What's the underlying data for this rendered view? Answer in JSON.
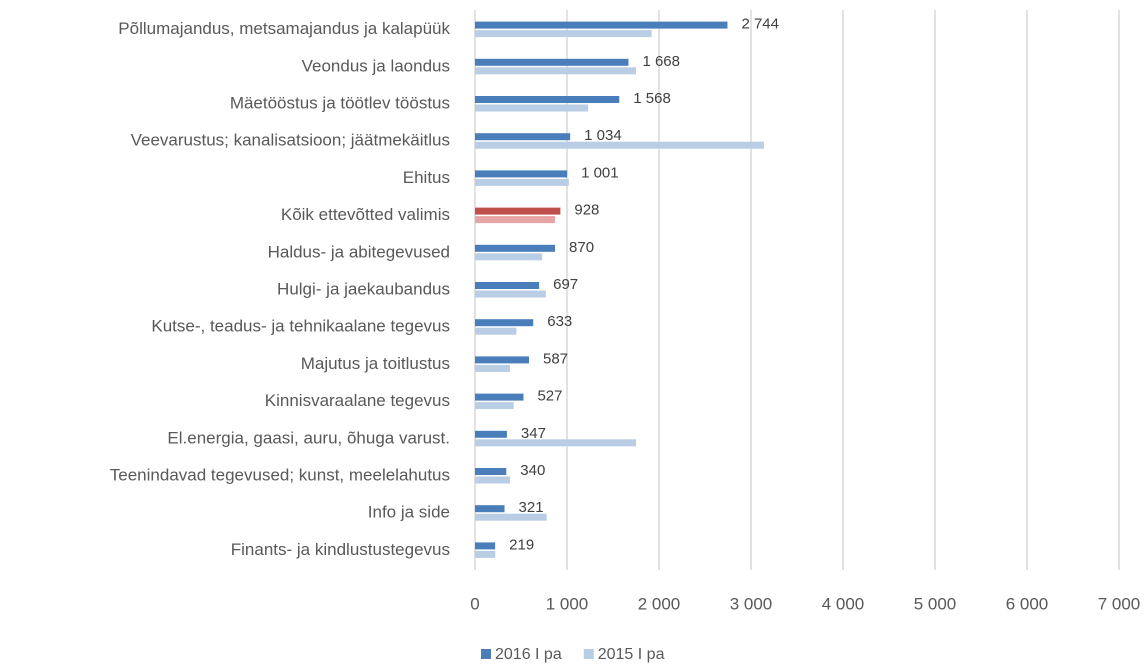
{
  "chart_data": {
    "type": "hbar",
    "categories": [
      "Põllumajandus, metsamajandus ja kalapüük",
      "Veondus ja laondus",
      "Mäetööstus ja töötlev tööstus",
      "Veevarustus; kanalisatsioon; jäätmekäitlus",
      "Ehitus",
      "Kõik ettevõtted valimis",
      "Haldus- ja abitegevused",
      "Hulgi- ja jaekaubandus",
      "Kutse-, teadus- ja tehnikaalane tegevus",
      "Majutus ja toitlustus",
      "Kinnisvaraalane tegevus",
      "El.energia, gaasi, auru, õhuga varust.",
      "Teenindavad tegevused; kunst, meelelahutus",
      "Info ja side",
      "Finants- ja kindlustustegevus"
    ],
    "series": [
      {
        "name": "2016 I pa",
        "color": "#4a7ebb",
        "point_colors": {
          "5": "#c0504d"
        },
        "values": [
          2744,
          1668,
          1568,
          1034,
          1001,
          928,
          870,
          697,
          633,
          587,
          527,
          347,
          340,
          321,
          219
        ],
        "value_labels": [
          "2 744",
          "1 668",
          "1 568",
          "1 034",
          "1 001",
          "928",
          "870",
          "697",
          "633",
          "587",
          "527",
          "347",
          "340",
          "321",
          "219"
        ]
      },
      {
        "name": "2015 I pa",
        "color": "#b9cde5",
        "point_colors": {
          "5": "#e6a5a4"
        },
        "values": [
          1920,
          1750,
          1230,
          3140,
          1020,
          870,
          730,
          770,
          450,
          380,
          420,
          1750,
          380,
          780,
          220
        ]
      }
    ],
    "xlim": [
      0,
      7000
    ],
    "xticks": [
      0,
      {
        "value": 1000,
        "label": "1 000"
      },
      {
        "value": 2000,
        "label": "2 000"
      },
      {
        "value": 3000,
        "label": "3 000"
      },
      {
        "value": 4000,
        "label": "4 000"
      },
      {
        "value": 5000,
        "label": "5 000"
      },
      {
        "value": 6000,
        "label": "6 000"
      },
      {
        "value": 7000,
        "label": "7 000"
      }
    ],
    "grid": true,
    "legend": "bottom"
  }
}
